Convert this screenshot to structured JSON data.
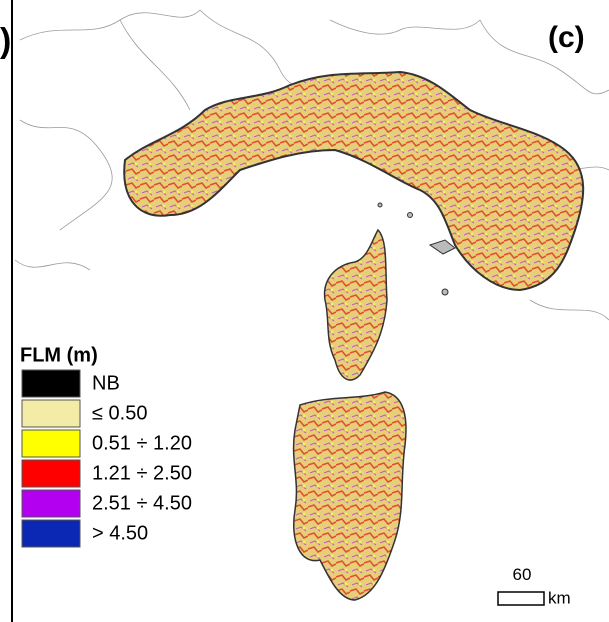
{
  "panel_label": "(c)",
  "legend": {
    "title": "FLM (m)",
    "items": [
      {
        "label": "NB",
        "color": "#000000"
      },
      {
        "label": "≤ 0.50",
        "color": "#f2eca6"
      },
      {
        "label": "0.51 ÷ 1.20",
        "color": "#ffff00"
      },
      {
        "label": "1.21 ÷ 2.50",
        "color": "#ff0000"
      },
      {
        "label": "2.51 ÷ 4.50",
        "color": "#b400f0"
      },
      {
        "label": "> 4.50",
        "color": "#0a28b4"
      }
    ]
  },
  "scale_bar": {
    "value": "60",
    "unit": "km"
  }
}
